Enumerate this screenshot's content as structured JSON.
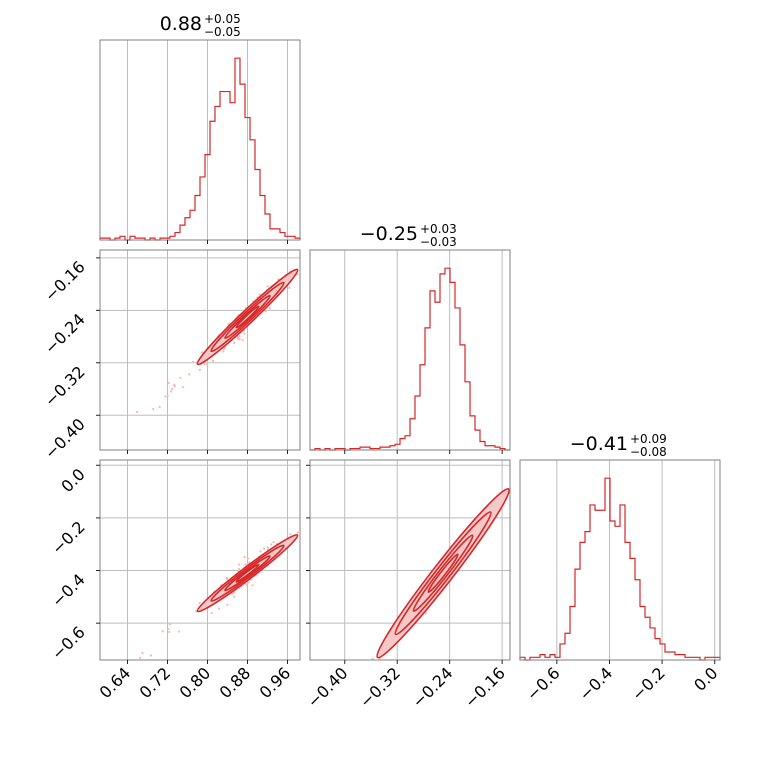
{
  "chart_data": {
    "type": "scatter",
    "colors": {
      "series": "#d62728",
      "scatter": "#f2b8b8",
      "contour_fill": "#f6c9c9",
      "grid": "#bdbdbd",
      "frame": "#808080"
    },
    "grid": true,
    "parameters": [
      {
        "title_value": "0.88",
        "title_plus": "+0.05",
        "title_minus": "−0.05",
        "range": [
          0.585,
          0.985
        ],
        "ticks": [
          0.64,
          0.72,
          0.8,
          0.88,
          0.96
        ],
        "tick_labels": [
          "0.64",
          "0.72",
          "0.80",
          "0.88",
          "0.96"
        ],
        "hist_bins": [
          0.585,
          0.985,
          40
        ],
        "hist_counts": [
          1,
          1,
          0,
          1,
          2,
          0,
          2,
          1,
          1,
          0,
          1,
          0,
          1,
          1,
          2,
          4,
          8,
          12,
          16,
          24,
          34,
          46,
          64,
          72,
          80,
          80,
          74,
          98,
          84,
          66,
          54,
          38,
          24,
          14,
          6,
          6,
          4,
          2,
          2,
          1
        ]
      },
      {
        "title_value": "−0.25",
        "title_plus": "+0.03",
        "title_minus": "−0.03",
        "range": [
          -0.453,
          -0.148
        ],
        "ticks": [
          -0.4,
          -0.32,
          -0.24,
          -0.16
        ],
        "tick_labels": [
          "−0.40",
          "−0.32",
          "−0.24",
          "−0.16"
        ],
        "hist_bins": [
          -0.453,
          -0.148,
          40
        ],
        "hist_counts": [
          0,
          1,
          0,
          1,
          0,
          1,
          1,
          0,
          1,
          1,
          2,
          2,
          1,
          1,
          2,
          2,
          3,
          4,
          8,
          10,
          22,
          38,
          60,
          86,
          112,
          104,
          124,
          128,
          118,
          100,
          74,
          48,
          24,
          14,
          6,
          3,
          3,
          2,
          1,
          0
        ]
      },
      {
        "title_value": "−0.41",
        "title_plus": "+0.09",
        "title_minus": "−0.08",
        "range": [
          -0.74,
          0.02
        ],
        "ticks": [
          -0.6,
          -0.4,
          -0.2,
          0.0
        ],
        "tick_labels": [
          "−0.6",
          "−0.4",
          "−0.2",
          "0.0"
        ],
        "hist_bins": [
          -0.74,
          0.02,
          40
        ],
        "hist_counts": [
          1,
          0,
          1,
          1,
          2,
          1,
          2,
          1,
          6,
          10,
          20,
          34,
          44,
          48,
          58,
          56,
          56,
          68,
          52,
          50,
          58,
          44,
          38,
          30,
          20,
          16,
          12,
          8,
          6,
          3,
          3,
          2,
          2,
          1,
          1,
          1,
          0,
          1,
          1,
          1
        ]
      }
    ],
    "correlations": {
      "p2_vs_p1": {
        "slope": 0.72,
        "center": [
          0.88,
          -0.25
        ]
      },
      "p3_vs_p1": {
        "slope": 1.45,
        "center": [
          0.88,
          -0.41
        ]
      },
      "p3_vs_p2": {
        "slope": 3.2,
        "center": [
          -0.25,
          -0.41
        ]
      }
    }
  }
}
